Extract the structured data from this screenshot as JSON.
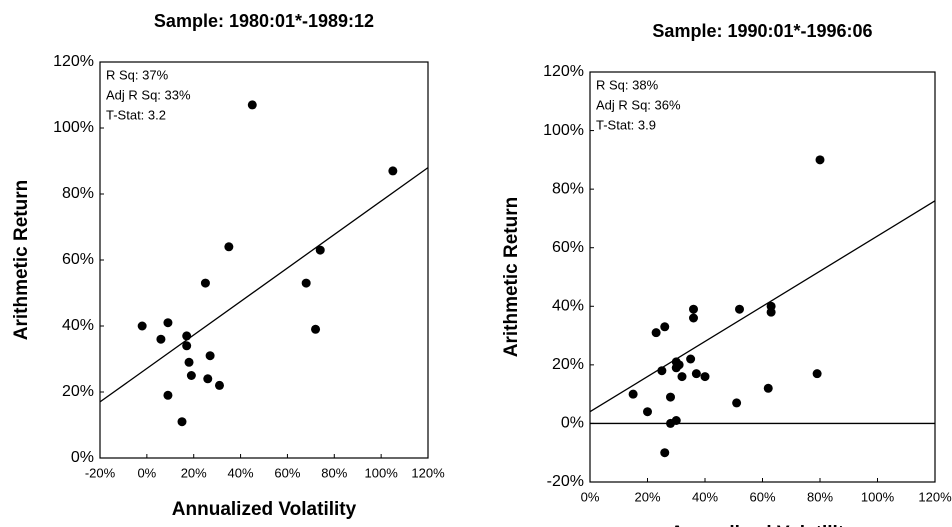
{
  "chart_data": [
    {
      "type": "scatter",
      "title": "Sample: 1980:01*-1989:12",
      "x_label": "Annualized Volatility",
      "y_label": "Arithmetic Return",
      "annotations": [
        "R Sq: 37%",
        "Adj R Sq: 33%",
        "T-Stat: 3.2"
      ],
      "color": "#000000",
      "x": [
        -2,
        6,
        9,
        9,
        17,
        17,
        18,
        19,
        15,
        25,
        27,
        26,
        31,
        35,
        45,
        68,
        72,
        74,
        105
      ],
      "values": [
        40,
        36,
        41,
        19,
        37,
        34,
        29,
        25,
        11,
        53,
        31,
        24,
        22,
        64,
        107,
        53,
        39,
        63,
        87
      ],
      "fit_line": {
        "x": [
          -20,
          120
        ],
        "values": [
          17,
          88
        ]
      },
      "xlim": [
        -20,
        120
      ],
      "xticks": [
        {
          "value": -20,
          "label": "-20%"
        },
        {
          "value": 0,
          "label": "0%"
        },
        {
          "value": 20,
          "label": "20%"
        },
        {
          "value": 40,
          "label": "40%"
        },
        {
          "value": 60,
          "label": "60%"
        },
        {
          "value": 80,
          "label": "80%"
        },
        {
          "value": 100,
          "label": "100%"
        },
        {
          "value": 120,
          "label": "120%"
        }
      ],
      "ylim": [
        0,
        120
      ],
      "yticks": [
        {
          "value": 0,
          "label": "0%"
        },
        {
          "value": 20,
          "label": "20%"
        },
        {
          "value": 40,
          "label": "40%"
        },
        {
          "value": 60,
          "label": "60%"
        },
        {
          "value": 80,
          "label": "80%"
        },
        {
          "value": 100,
          "label": "100%"
        },
        {
          "value": 120,
          "label": "120%"
        }
      ]
    },
    {
      "type": "scatter",
      "title": "Sample: 1990:01*-1996:06",
      "x_label": "Annualized Volatility",
      "y_label": "Arithmetic Return",
      "annotations": [
        "R Sq: 38%",
        "Adj R Sq: 36%",
        "T-Stat: 3.9"
      ],
      "color": "#000000",
      "x": [
        15,
        20,
        23,
        26,
        25,
        26,
        28,
        28,
        30,
        30,
        30,
        32,
        31,
        35,
        36,
        36,
        37,
        40,
        51,
        52,
        63,
        63,
        62,
        79,
        80
      ],
      "values": [
        10,
        4,
        31,
        33,
        18,
        -10,
        0,
        9,
        1,
        21,
        19,
        16,
        20,
        22,
        39,
        36,
        17,
        16,
        7,
        39,
        40,
        38,
        12,
        17,
        90
      ],
      "fit_line": {
        "x": [
          0,
          120
        ],
        "values": [
          4,
          76
        ]
      },
      "reference_line": 0,
      "xlim": [
        0,
        120
      ],
      "xticks": [
        {
          "value": 0,
          "label": "0%"
        },
        {
          "value": 20,
          "label": "20%"
        },
        {
          "value": 40,
          "label": "40%"
        },
        {
          "value": 60,
          "label": "60%"
        },
        {
          "value": 80,
          "label": "80%"
        },
        {
          "value": 100,
          "label": "100%"
        },
        {
          "value": 120,
          "label": "120%"
        }
      ],
      "ylim": [
        -20,
        120
      ],
      "yticks": [
        {
          "value": -20,
          "label": "-20%"
        },
        {
          "value": 0,
          "label": "0%"
        },
        {
          "value": 20,
          "label": "20%"
        },
        {
          "value": 40,
          "label": "40%"
        },
        {
          "value": 60,
          "label": "60%"
        },
        {
          "value": 80,
          "label": "80%"
        },
        {
          "value": 100,
          "label": "100%"
        },
        {
          "value": 120,
          "label": "120%"
        }
      ]
    }
  ]
}
